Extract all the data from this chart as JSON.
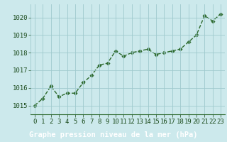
{
  "x": [
    0,
    1,
    2,
    3,
    4,
    5,
    6,
    7,
    8,
    9,
    10,
    11,
    12,
    13,
    14,
    15,
    16,
    17,
    18,
    19,
    20,
    21,
    22,
    23
  ],
  "y": [
    1015.0,
    1015.4,
    1016.1,
    1015.5,
    1015.7,
    1015.7,
    1016.3,
    1016.7,
    1017.3,
    1017.4,
    1018.1,
    1017.8,
    1018.0,
    1018.1,
    1018.2,
    1017.9,
    1018.0,
    1018.1,
    1018.2,
    1018.6,
    1019.0,
    1020.1,
    1019.8,
    1020.2
  ],
  "line_color": "#2d6a2d",
  "marker_color": "#2d6a2d",
  "bg_color": "#cce9ec",
  "grid_color": "#9fc9ce",
  "axis_label_color": "#1a4a1a",
  "xlabel": "Graphe pression niveau de la mer (hPa)",
  "bottom_bar_color": "#1a6a1a",
  "ylim": [
    1014.5,
    1020.75
  ],
  "xlim": [
    -0.5,
    23.5
  ],
  "yticks": [
    1015,
    1016,
    1017,
    1018,
    1019,
    1020
  ],
  "xticks": [
    0,
    1,
    2,
    3,
    4,
    5,
    6,
    7,
    8,
    9,
    10,
    11,
    12,
    13,
    14,
    15,
    16,
    17,
    18,
    19,
    20,
    21,
    22,
    23
  ],
  "xlabel_fontsize": 7.5,
  "tick_fontsize": 6.5,
  "line_width": 1.0,
  "marker_size": 2.8
}
